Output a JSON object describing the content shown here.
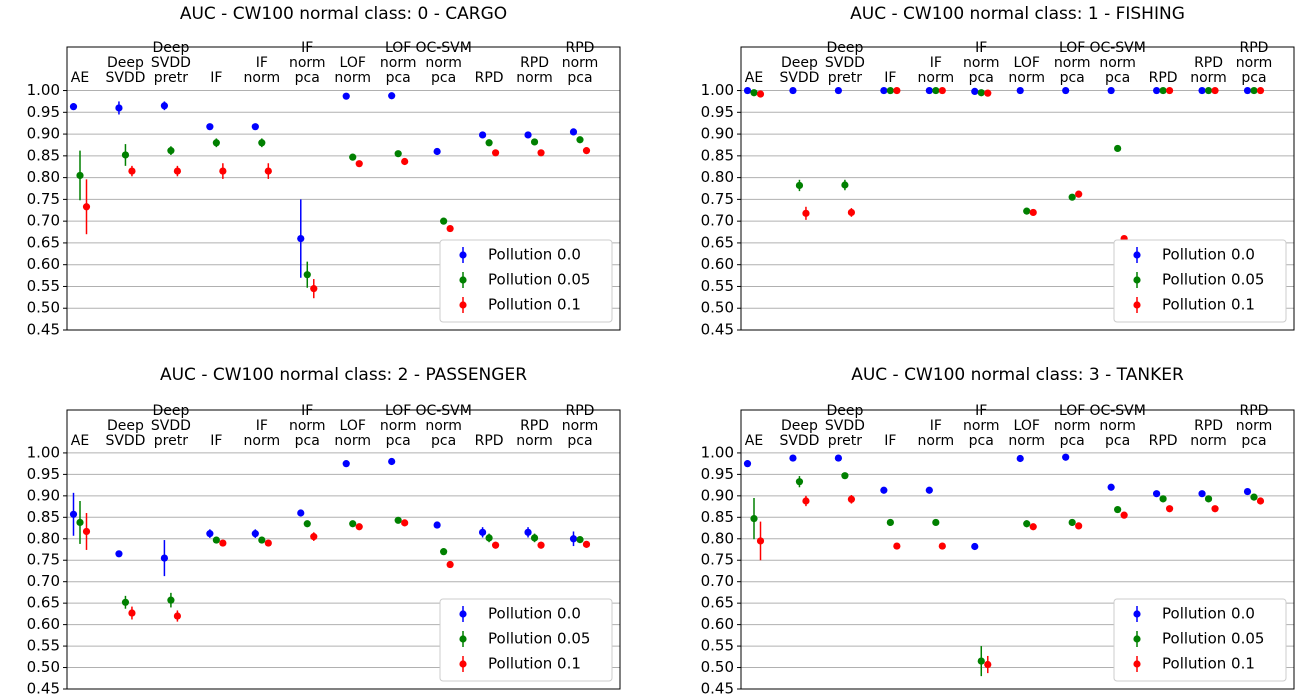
{
  "chart_data": [
    {
      "type": "errorbar",
      "title": "AUC - CW100 normal class: 0 - CARGO",
      "categories": [
        "AE",
        "Deep\nSVDD",
        "Deep\nSVDD\npretr",
        "IF",
        "IF\nnorm",
        "IF\nnorm\npca",
        "LOF\nnorm",
        "LOF\nnorm\npca",
        "OC-SVM\nnorm\npca",
        "RPD",
        "RPD\nnorm",
        "RPD\nnorm\npca"
      ],
      "series": [
        {
          "name": "Pollution 0.0",
          "color": "#0000ff",
          "values": [
            0.963,
            0.96,
            0.965,
            0.917,
            0.917,
            0.66,
            0.987,
            0.988,
            0.86,
            0.898,
            0.898,
            0.905
          ],
          "errors": [
            0.005,
            0.015,
            0.01,
            0.003,
            0.003,
            0.09,
            0.002,
            0.002,
            0.002,
            0.003,
            0.003,
            0.003
          ]
        },
        {
          "name": "Pollution 0.05",
          "color": "#008000",
          "values": [
            0.805,
            0.852,
            0.862,
            0.88,
            0.88,
            0.577,
            0.847,
            0.855,
            0.7,
            0.88,
            0.882,
            0.887
          ],
          "errors": [
            0.057,
            0.025,
            0.01,
            0.01,
            0.01,
            0.03,
            0.005,
            0.005,
            0.003,
            0.003,
            0.003,
            0.003
          ]
        },
        {
          "name": "Pollution 0.1",
          "color": "#ff0000",
          "values": [
            0.733,
            0.815,
            0.815,
            0.815,
            0.815,
            0.545,
            0.832,
            0.837,
            0.683,
            0.857,
            0.857,
            0.862
          ],
          "errors": [
            0.063,
            0.012,
            0.012,
            0.018,
            0.018,
            0.022,
            0.003,
            0.003,
            0.003,
            0.003,
            0.003,
            0.003
          ]
        }
      ],
      "ylim": [
        0.45,
        1.1
      ],
      "yticks": [
        0.45,
        {
          "value": 0.5,
          "label": "0.50"
        },
        0.55,
        {
          "value": 0.6,
          "label": "0.60"
        },
        0.65,
        {
          "value": 0.7,
          "label": "0.70"
        },
        0.75,
        {
          "value": 0.8,
          "label": "0.80"
        },
        0.85,
        {
          "value": 0.9,
          "label": "0.90"
        },
        0.95,
        {
          "value": 1,
          "label": "1.00"
        }
      ],
      "grid": true,
      "legend": "lower right"
    },
    {
      "type": "errorbar",
      "title": "AUC - CW100 normal class: 1 - FISHING",
      "categories": [
        "AE",
        "Deep\nSVDD",
        "Deep\nSVDD\npretr",
        "IF",
        "IF\nnorm",
        "IF\nnorm\npca",
        "LOF\nnorm",
        "LOF\nnorm\npca",
        "OC-SVM\nnorm\npca",
        "RPD",
        "RPD\nnorm",
        "RPD\nnorm\npca"
      ],
      "series": [
        {
          "name": "Pollution 0.0",
          "color": "#0000ff",
          "values": [
            1.0,
            1.0,
            1.0,
            1.0,
            1.0,
            0.998,
            1.0,
            1.0,
            1.0,
            1.0,
            1.0,
            1.0
          ],
          "errors": [
            0.002,
            0.002,
            0.002,
            0.002,
            0.002,
            0.003,
            0.002,
            0.002,
            0.002,
            0.002,
            0.002,
            0.002
          ]
        },
        {
          "name": "Pollution 0.05",
          "color": "#008000",
          "values": [
            0.995,
            0.782,
            0.783,
            1.0,
            1.0,
            0.995,
            0.723,
            0.755,
            0.867,
            1.0,
            1.0,
            1.0
          ],
          "errors": [
            0.002,
            0.013,
            0.012,
            0.002,
            0.002,
            0.003,
            0.002,
            0.003,
            0.002,
            0.002,
            0.002,
            0.002
          ]
        },
        {
          "name": "Pollution 0.1",
          "color": "#ff0000",
          "values": [
            0.992,
            0.718,
            0.72,
            1.0,
            1.0,
            0.994,
            0.72,
            0.762,
            0.66,
            1.0,
            1.0,
            1.0
          ],
          "errors": [
            0.002,
            0.015,
            0.01,
            0.002,
            0.002,
            0.003,
            0.002,
            0.003,
            0.002,
            0.002,
            0.002,
            0.002
          ]
        }
      ],
      "ylim": [
        0.45,
        1.1
      ],
      "yticks": [
        0.45,
        {
          "value": 0.5,
          "label": "0.50"
        },
        0.55,
        {
          "value": 0.6,
          "label": "0.60"
        },
        0.65,
        {
          "value": 0.7,
          "label": "0.70"
        },
        0.75,
        {
          "value": 0.8,
          "label": "0.80"
        },
        0.85,
        {
          "value": 0.9,
          "label": "0.90"
        },
        0.95,
        {
          "value": 1,
          "label": "1.00"
        }
      ],
      "grid": true,
      "legend": "lower right"
    },
    {
      "type": "errorbar",
      "title": "AUC - CW100 normal class: 2 - PASSENGER",
      "categories": [
        "AE",
        "Deep\nSVDD",
        "Deep\nSVDD\npretr",
        "IF",
        "IF\nnorm",
        "IF\nnorm\npca",
        "LOF\nnorm",
        "LOF\nnorm\npca",
        "OC-SVM\nnorm\npca",
        "RPD",
        "RPD\nnorm",
        "RPD\nnorm\npca"
      ],
      "series": [
        {
          "name": "Pollution 0.0",
          "color": "#0000ff",
          "values": [
            0.857,
            0.765,
            0.755,
            0.812,
            0.812,
            0.86,
            0.975,
            0.98,
            0.832,
            0.815,
            0.815,
            0.8
          ],
          "errors": [
            0.05,
            0.003,
            0.042,
            0.01,
            0.01,
            0.003,
            0.002,
            0.002,
            0.003,
            0.012,
            0.012,
            0.017
          ]
        },
        {
          "name": "Pollution 0.05",
          "color": "#008000",
          "values": [
            0.838,
            0.652,
            0.657,
            0.797,
            0.797,
            0.835,
            0.835,
            0.843,
            0.77,
            0.802,
            0.802,
            0.798
          ],
          "errors": [
            0.05,
            0.015,
            0.017,
            0.008,
            0.008,
            0.003,
            0.003,
            0.003,
            0.003,
            0.01,
            0.01,
            0.005
          ]
        },
        {
          "name": "Pollution 0.1",
          "color": "#ff0000",
          "values": [
            0.817,
            0.627,
            0.62,
            0.79,
            0.79,
            0.805,
            0.828,
            0.837,
            0.74,
            0.785,
            0.785,
            0.787
          ],
          "errors": [
            0.043,
            0.015,
            0.013,
            0.005,
            0.005,
            0.01,
            0.003,
            0.003,
            0.003,
            0.008,
            0.008,
            0.005
          ]
        }
      ],
      "ylim": [
        0.45,
        1.1
      ],
      "yticks": [
        0.45,
        {
          "value": 0.5,
          "label": "0.50"
        },
        0.55,
        {
          "value": 0.6,
          "label": "0.60"
        },
        0.65,
        {
          "value": 0.7,
          "label": "0.70"
        },
        0.75,
        {
          "value": 0.8,
          "label": "0.80"
        },
        0.85,
        {
          "value": 0.9,
          "label": "0.90"
        },
        0.95,
        {
          "value": 1,
          "label": "1.00"
        }
      ],
      "grid": true,
      "legend": "lower right"
    },
    {
      "type": "errorbar",
      "title": "AUC - CW100 normal class: 3 - TANKER",
      "categories": [
        "AE",
        "Deep\nSVDD",
        "Deep\nSVDD\npretr",
        "IF",
        "IF\nnorm",
        "IF\nnorm\npca",
        "LOF\nnorm",
        "LOF\nnorm\npca",
        "OC-SVM\nnorm\npca",
        "RPD",
        "RPD\nnorm",
        "RPD\nnorm\npca"
      ],
      "series": [
        {
          "name": "Pollution 0.0",
          "color": "#0000ff",
          "values": [
            0.975,
            0.988,
            0.988,
            0.913,
            0.913,
            0.782,
            0.987,
            0.99,
            0.92,
            0.905,
            0.905,
            0.91
          ],
          "errors": [
            0.002,
            0.002,
            0.002,
            0.002,
            0.002,
            0.002,
            0.002,
            0.002,
            0.002,
            0.003,
            0.003,
            0.003
          ]
        },
        {
          "name": "Pollution 0.05",
          "color": "#008000",
          "values": [
            0.847,
            0.933,
            0.947,
            0.838,
            0.838,
            0.515,
            0.835,
            0.838,
            0.868,
            0.893,
            0.893,
            0.897
          ],
          "errors": [
            0.048,
            0.013,
            0.005,
            0.003,
            0.003,
            0.035,
            0.008,
            0.008,
            0.003,
            0.003,
            0.003,
            0.003
          ]
        },
        {
          "name": "Pollution 0.1",
          "color": "#ff0000",
          "values": [
            0.795,
            0.888,
            0.892,
            0.783,
            0.783,
            0.507,
            0.828,
            0.83,
            0.855,
            0.87,
            0.87,
            0.888
          ],
          "errors": [
            0.045,
            0.012,
            0.01,
            0.002,
            0.002,
            0.02,
            0.003,
            0.003,
            0.003,
            0.003,
            0.003,
            0.003
          ]
        }
      ],
      "ylim": [
        0.45,
        1.1
      ],
      "yticks": [
        0.45,
        {
          "value": 0.5,
          "label": "0.50"
        },
        0.55,
        {
          "value": 0.6,
          "label": "0.60"
        },
        0.65,
        {
          "value": 0.7,
          "label": "0.70"
        },
        0.75,
        {
          "value": 0.8,
          "label": "0.80"
        },
        0.85,
        {
          "value": 0.9,
          "label": "0.90"
        },
        0.95,
        {
          "value": 1,
          "label": "1.00"
        }
      ],
      "grid": true,
      "legend": "lower right"
    }
  ]
}
